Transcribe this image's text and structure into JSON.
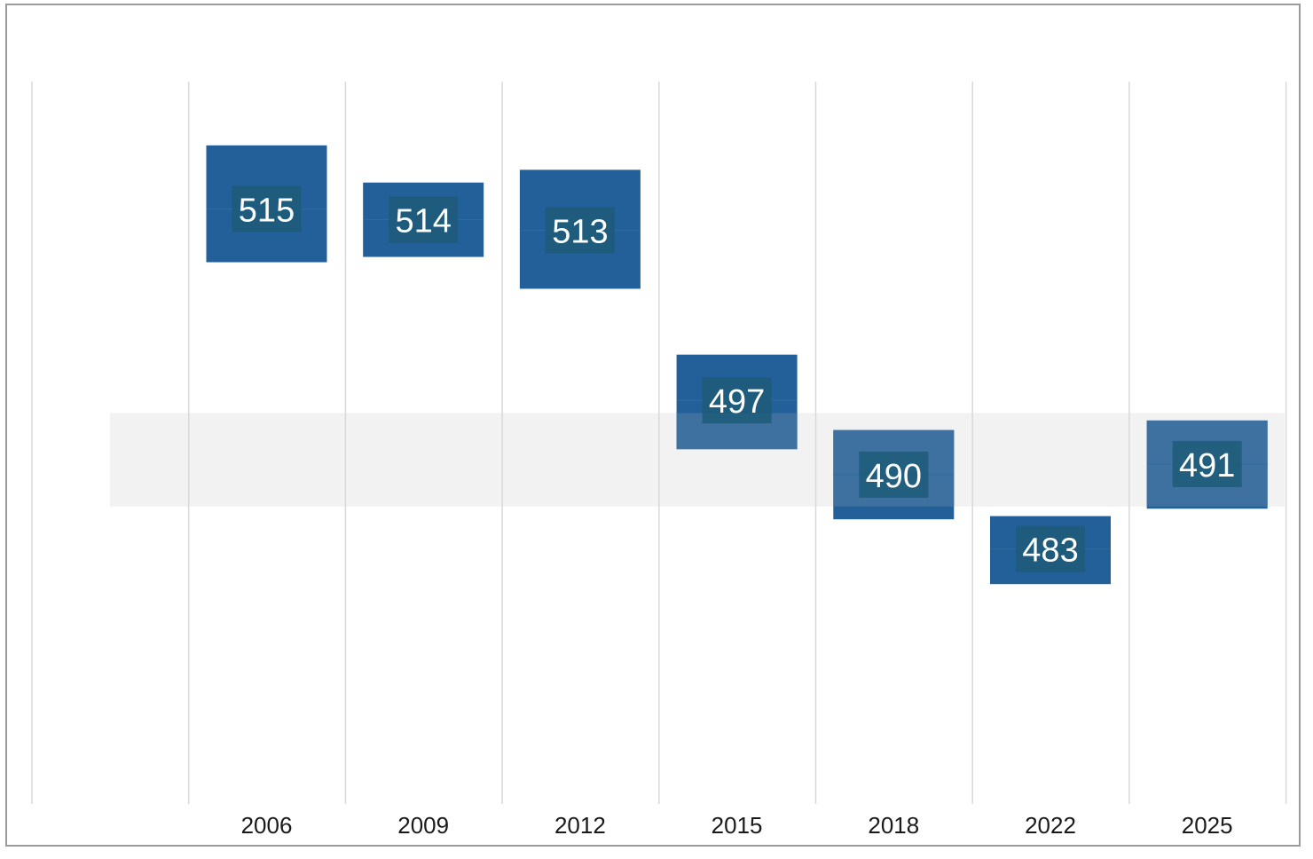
{
  "chart_data": {
    "type": "bar",
    "categories": [
      "2006",
      "2009",
      "2012",
      "2015",
      "2018",
      "2022",
      "2025"
    ],
    "values": [
      515,
      514,
      513,
      497,
      490,
      483,
      491
    ],
    "intervals": [
      {
        "low": 510,
        "high": 521
      },
      {
        "low": 510.5,
        "high": 517.5
      },
      {
        "low": 507.5,
        "high": 518.7
      },
      {
        "low": 492.4,
        "high": 501.3
      },
      {
        "low": 485.8,
        "high": 494.2
      },
      {
        "low": 479.7,
        "high": 486.1
      },
      {
        "low": 486.8,
        "high": 495.1
      }
    ],
    "band": {
      "low": 487,
      "high": 495.8
    },
    "ylim": [
      459,
      527
    ],
    "grid": "vertical",
    "title": "",
    "xlabel": "",
    "ylabel": "",
    "colors": {
      "box": "#235f99",
      "box_in_band": "#3e70a0",
      "label_bg": "#1d5a78",
      "band": "#f2f2f2",
      "grid": "#d9d9d9",
      "frame": "#9a9a9a"
    }
  }
}
